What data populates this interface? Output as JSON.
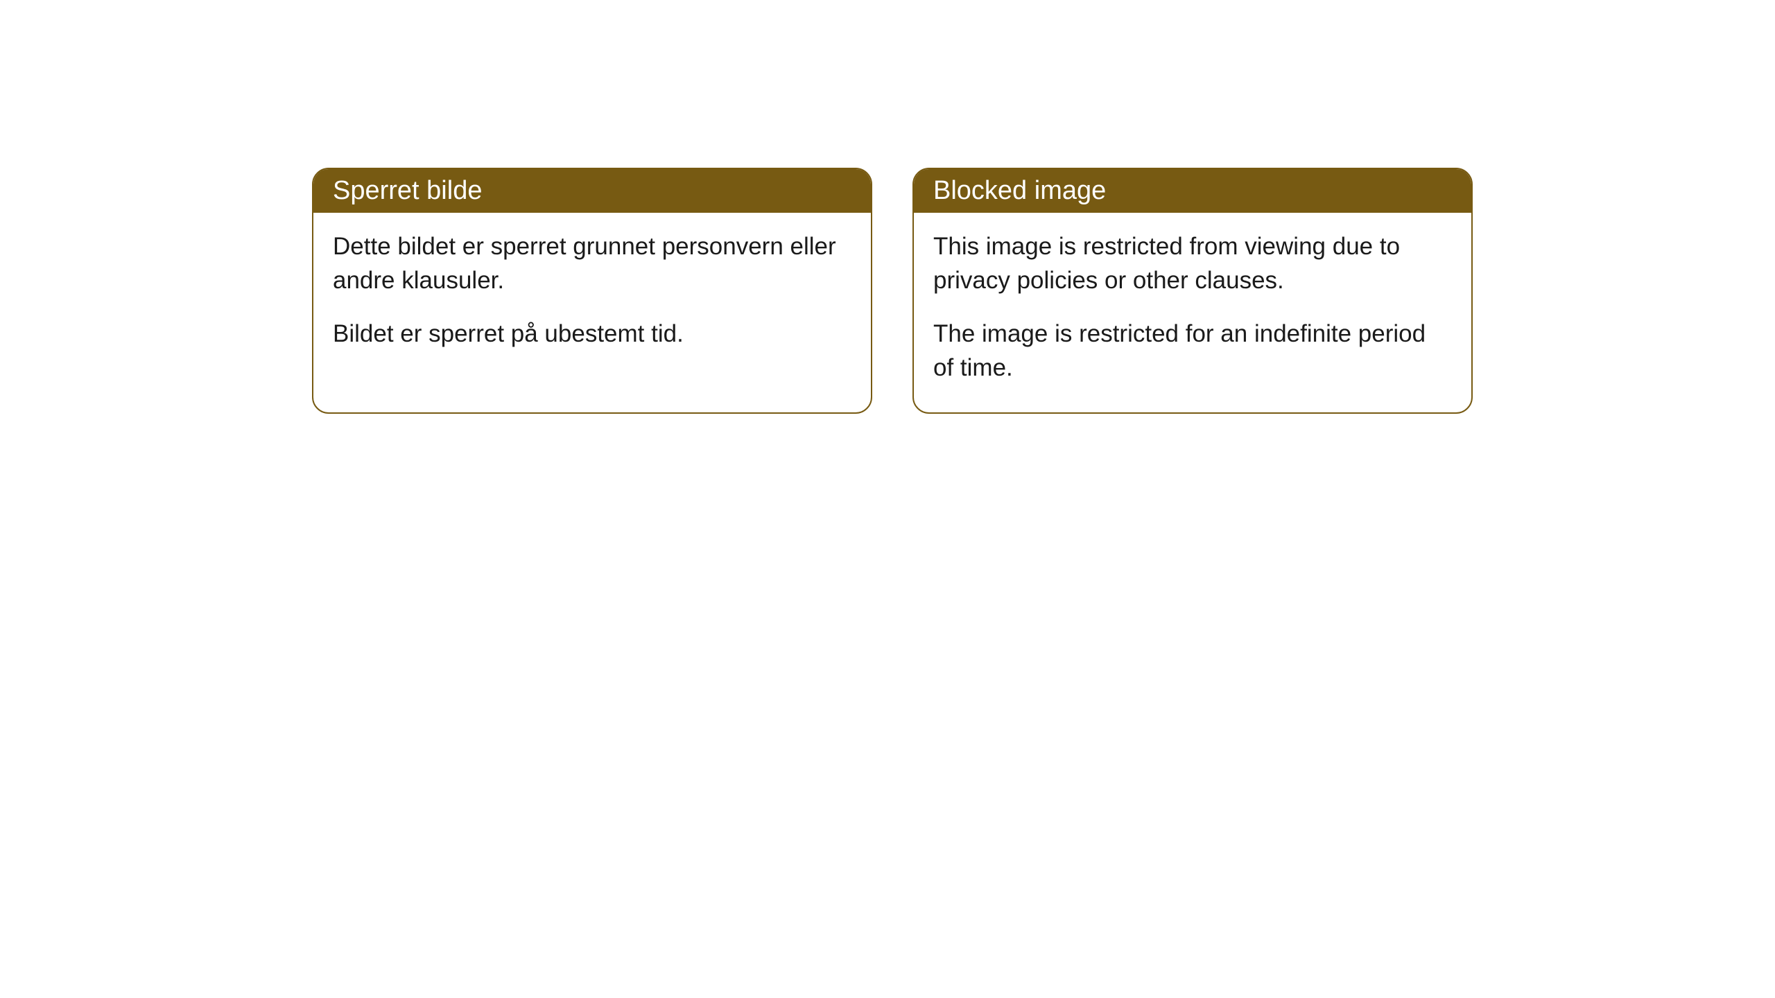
{
  "cards": [
    {
      "title": "Sperret bilde",
      "paragraph1": "Dette bildet er sperret grunnet personvern eller andre klausuler.",
      "paragraph2": "Bildet er sperret på ubestemt tid."
    },
    {
      "title": "Blocked image",
      "paragraph1": "This image is restricted from viewing due to privacy policies or other clauses.",
      "paragraph2": "The image is restricted for an indefinite period of time."
    }
  ],
  "style": {
    "header_bg_color": "#775a12",
    "header_text_color": "#ffffff",
    "border_color": "#775a12",
    "body_text_color": "#1a1a1a",
    "card_bg_color": "#ffffff",
    "page_bg_color": "#ffffff",
    "border_radius": 24,
    "header_font_size": 38,
    "body_font_size": 35
  }
}
